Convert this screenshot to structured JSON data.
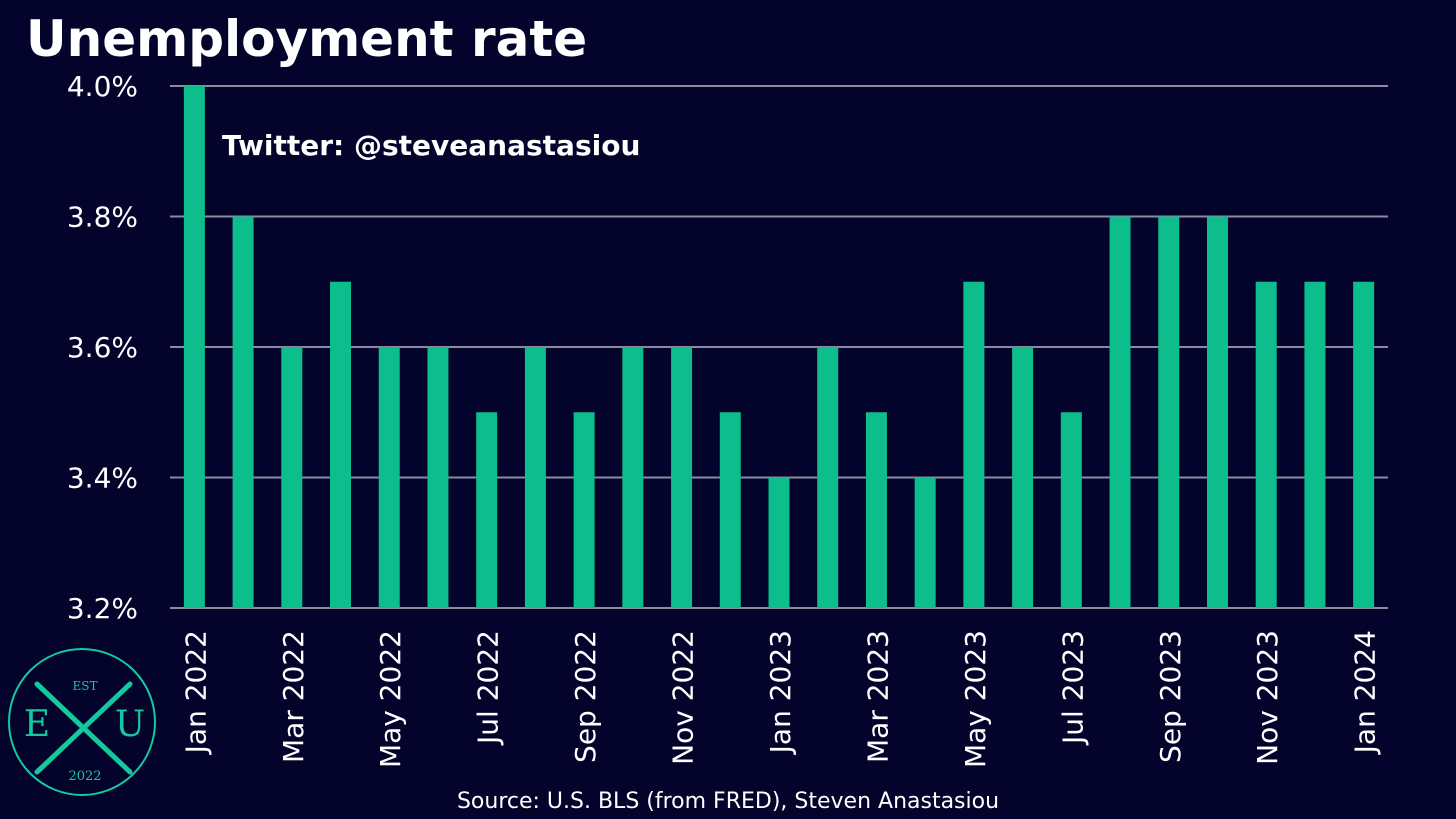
{
  "chart_data": {
    "type": "bar",
    "title": "Unemployment rate",
    "annotation": "Twitter: @steveanastasiou",
    "source": "Source: U.S. BLS (from FRED), Steven Anastasiou",
    "categories": [
      "Jan 2022",
      "Feb 2022",
      "Mar 2022",
      "Apr 2022",
      "May 2022",
      "Jun 2022",
      "Jul 2022",
      "Aug 2022",
      "Sep 2022",
      "Oct 2022",
      "Nov 2022",
      "Dec 2022",
      "Jan 2023",
      "Feb 2023",
      "Mar 2023",
      "Apr 2023",
      "May 2023",
      "Jun 2023",
      "Jul 2023",
      "Aug 2023",
      "Sep 2023",
      "Oct 2023",
      "Nov 2023",
      "Dec 2023",
      "Jan 2024"
    ],
    "x_tick_labels": [
      "Jan 2022",
      "Mar 2022",
      "May 2022",
      "Jul 2022",
      "Sep 2022",
      "Nov 2022",
      "Jan 2023",
      "Mar 2023",
      "May 2023",
      "Jul 2023",
      "Sep 2023",
      "Nov 2023",
      "Jan 2024"
    ],
    "values": [
      4.0,
      3.8,
      3.6,
      3.7,
      3.6,
      3.6,
      3.5,
      3.6,
      3.5,
      3.6,
      3.6,
      3.5,
      3.4,
      3.6,
      3.5,
      3.4,
      3.7,
      3.6,
      3.5,
      3.8,
      3.8,
      3.8,
      3.7,
      3.7,
      3.7
    ],
    "ylim": [
      3.2,
      4.0
    ],
    "y_ticks": [
      3.2,
      3.4,
      3.6,
      3.8,
      4.0
    ],
    "y_tick_labels": [
      "3.2%",
      "3.4%",
      "3.6%",
      "3.8%",
      "4.0%"
    ],
    "xlabel": "",
    "ylabel": "",
    "grid": true,
    "legend": "none",
    "colors": {
      "bar": "#0dbd8b",
      "background": "#03032b",
      "grid": "#8a8aa0",
      "text": "#ffffff",
      "logo": "#13c9a0"
    }
  },
  "logo": {
    "top": "EST",
    "left": "E",
    "right": "U",
    "bottom": "2022"
  }
}
